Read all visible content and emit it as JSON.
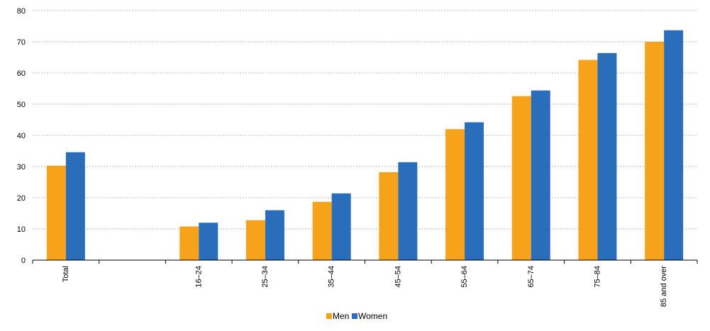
{
  "chart_data": {
    "type": "bar",
    "title": "",
    "xlabel": "",
    "ylabel": "",
    "categories": [
      "Total",
      "",
      "16–24",
      "25–34",
      "35–44",
      "45–54",
      "55–64",
      "65–74",
      "75–84",
      "85 and over"
    ],
    "series": [
      {
        "name": "Men",
        "color": "#F7A21B",
        "values": [
          30.3,
          null,
          10.8,
          12.8,
          18.7,
          28.2,
          42.0,
          52.6,
          64.2,
          70.0
        ]
      },
      {
        "name": "Women",
        "color": "#2A6EBB",
        "values": [
          34.6,
          null,
          12.0,
          16.0,
          21.4,
          31.4,
          44.2,
          54.4,
          66.4,
          73.7
        ]
      }
    ],
    "ylim": [
      0,
      80
    ],
    "yticks": [
      0,
      10,
      20,
      30,
      40,
      50,
      60,
      70,
      80
    ],
    "grid": true,
    "legend_position": "bottom-center",
    "x_tick_orientation": "vertical"
  }
}
